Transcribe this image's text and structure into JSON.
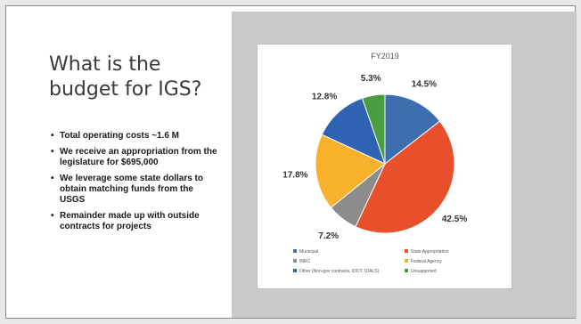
{
  "slide": {
    "title_line1": "What is the",
    "title_line2": "budget for IGS?",
    "bullets": [
      "Total operating costs ~1.6 M",
      "We receive an appropriation from the legislature for $695,000",
      "We leverage some state dollars to obtain matching funds from the USGS",
      "Remainder made up with outside contracts for projects"
    ]
  },
  "chart_data": {
    "type": "pie",
    "title": "FY2019",
    "slices": [
      {
        "name": "Municipal",
        "value": 14.5,
        "label": "14.5%",
        "color": "#3d6fb0"
      },
      {
        "name": "State Appropriation",
        "value": 42.5,
        "label": "42.5%",
        "color": "#e8502c"
      },
      {
        "name": "INRC",
        "value": 7.2,
        "label": "7.2%",
        "color": "#8c8c8c"
      },
      {
        "name": "Federal Agency",
        "value": 17.8,
        "label": "17.8%",
        "color": "#f8b12a"
      },
      {
        "name": "Other (Non-gov contracts, IDOT, IDALS)",
        "value": 12.8,
        "label": "12.8%",
        "color": "#2f63b4"
      },
      {
        "name": "Unsupported",
        "value": 5.3,
        "label": "5.3%",
        "color": "#4a9d3f"
      }
    ],
    "legend_position": "bottom",
    "legend_order": [
      [
        "Municipal",
        "State Appropriation"
      ],
      [
        "INRC",
        "Federal Agency"
      ],
      [
        "Other (Non-gov contracts, IDOT, IDALS)",
        "Unsupported"
      ]
    ]
  }
}
